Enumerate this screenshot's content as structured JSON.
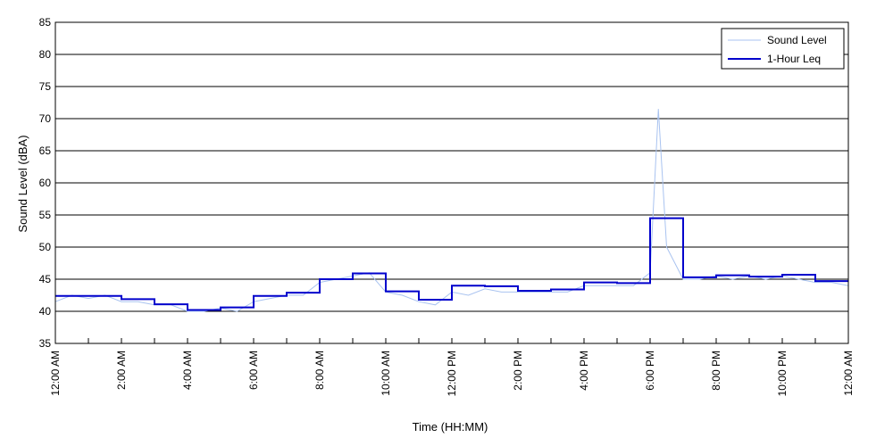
{
  "chart_data": {
    "type": "line",
    "xlabel": "Time (HH:MM)",
    "ylabel": "Sound Level (dBA)",
    "ylim": [
      35,
      85
    ],
    "yticks": [
      35,
      40,
      45,
      50,
      55,
      60,
      65,
      70,
      75,
      80,
      85
    ],
    "xlim_hours": [
      0,
      24
    ],
    "xticks": [
      {
        "hour": 0,
        "label": "12:00 AM"
      },
      {
        "hour": 2,
        "label": "2:00 AM"
      },
      {
        "hour": 4,
        "label": "4:00 AM"
      },
      {
        "hour": 6,
        "label": "6:00 AM"
      },
      {
        "hour": 8,
        "label": "8:00 AM"
      },
      {
        "hour": 10,
        "label": "10:00 AM"
      },
      {
        "hour": 12,
        "label": "12:00 PM"
      },
      {
        "hour": 14,
        "label": "2:00 PM"
      },
      {
        "hour": 16,
        "label": "4:00 PM"
      },
      {
        "hour": 18,
        "label": "6:00 PM"
      },
      {
        "hour": 20,
        "label": "8:00 PM"
      },
      {
        "hour": 22,
        "label": "10:00 PM"
      },
      {
        "hour": 24,
        "label": "12:00 AM"
      }
    ],
    "grid": "horizontal",
    "legend_position": "top-right",
    "series": [
      {
        "name": "Sound Level",
        "color": "#a9c3f0",
        "style": "thin",
        "x": [
          0,
          0.5,
          1,
          1.5,
          2,
          2.5,
          3,
          3.5,
          4,
          4.5,
          5,
          5.5,
          6,
          6.5,
          7,
          7.5,
          8,
          8.5,
          9,
          9.5,
          10,
          10.5,
          11,
          11.5,
          12,
          12.5,
          13,
          13.5,
          14,
          14.5,
          15,
          15.5,
          16,
          16.5,
          17,
          17.5,
          18,
          18.25,
          18.5,
          19,
          19.5,
          20,
          20.5,
          21,
          21.5,
          22,
          22.5,
          23,
          23.5,
          24
        ],
        "y": [
          41.5,
          42.5,
          42,
          42.5,
          41.5,
          41.5,
          41,
          41,
          40,
          40,
          40.5,
          40,
          41.5,
          42,
          42.5,
          42.5,
          44.5,
          45,
          45.5,
          46,
          43,
          42.5,
          41.5,
          41,
          43,
          42.5,
          43.5,
          43,
          43,
          43,
          43,
          43,
          44,
          44,
          44,
          44,
          46,
          71.5,
          50,
          45,
          45,
          45.5,
          45,
          45.5,
          45,
          45.5,
          45,
          44.5,
          44.5,
          44
        ]
      },
      {
        "name": "1-Hour Leq",
        "color": "#0000cc",
        "style": "step",
        "hours": [
          0,
          1,
          2,
          3,
          4,
          5,
          6,
          7,
          8,
          9,
          10,
          11,
          12,
          13,
          14,
          15,
          16,
          17,
          18,
          19,
          20,
          21,
          22,
          23
        ],
        "values": [
          42.4,
          42.4,
          41.9,
          41.1,
          40.2,
          40.6,
          42.4,
          42.9,
          45.0,
          45.9,
          43.1,
          41.8,
          44.0,
          43.9,
          43.2,
          43.4,
          44.5,
          44.4,
          54.5,
          45.3,
          45.6,
          45.4,
          45.7,
          44.7
        ]
      }
    ]
  }
}
